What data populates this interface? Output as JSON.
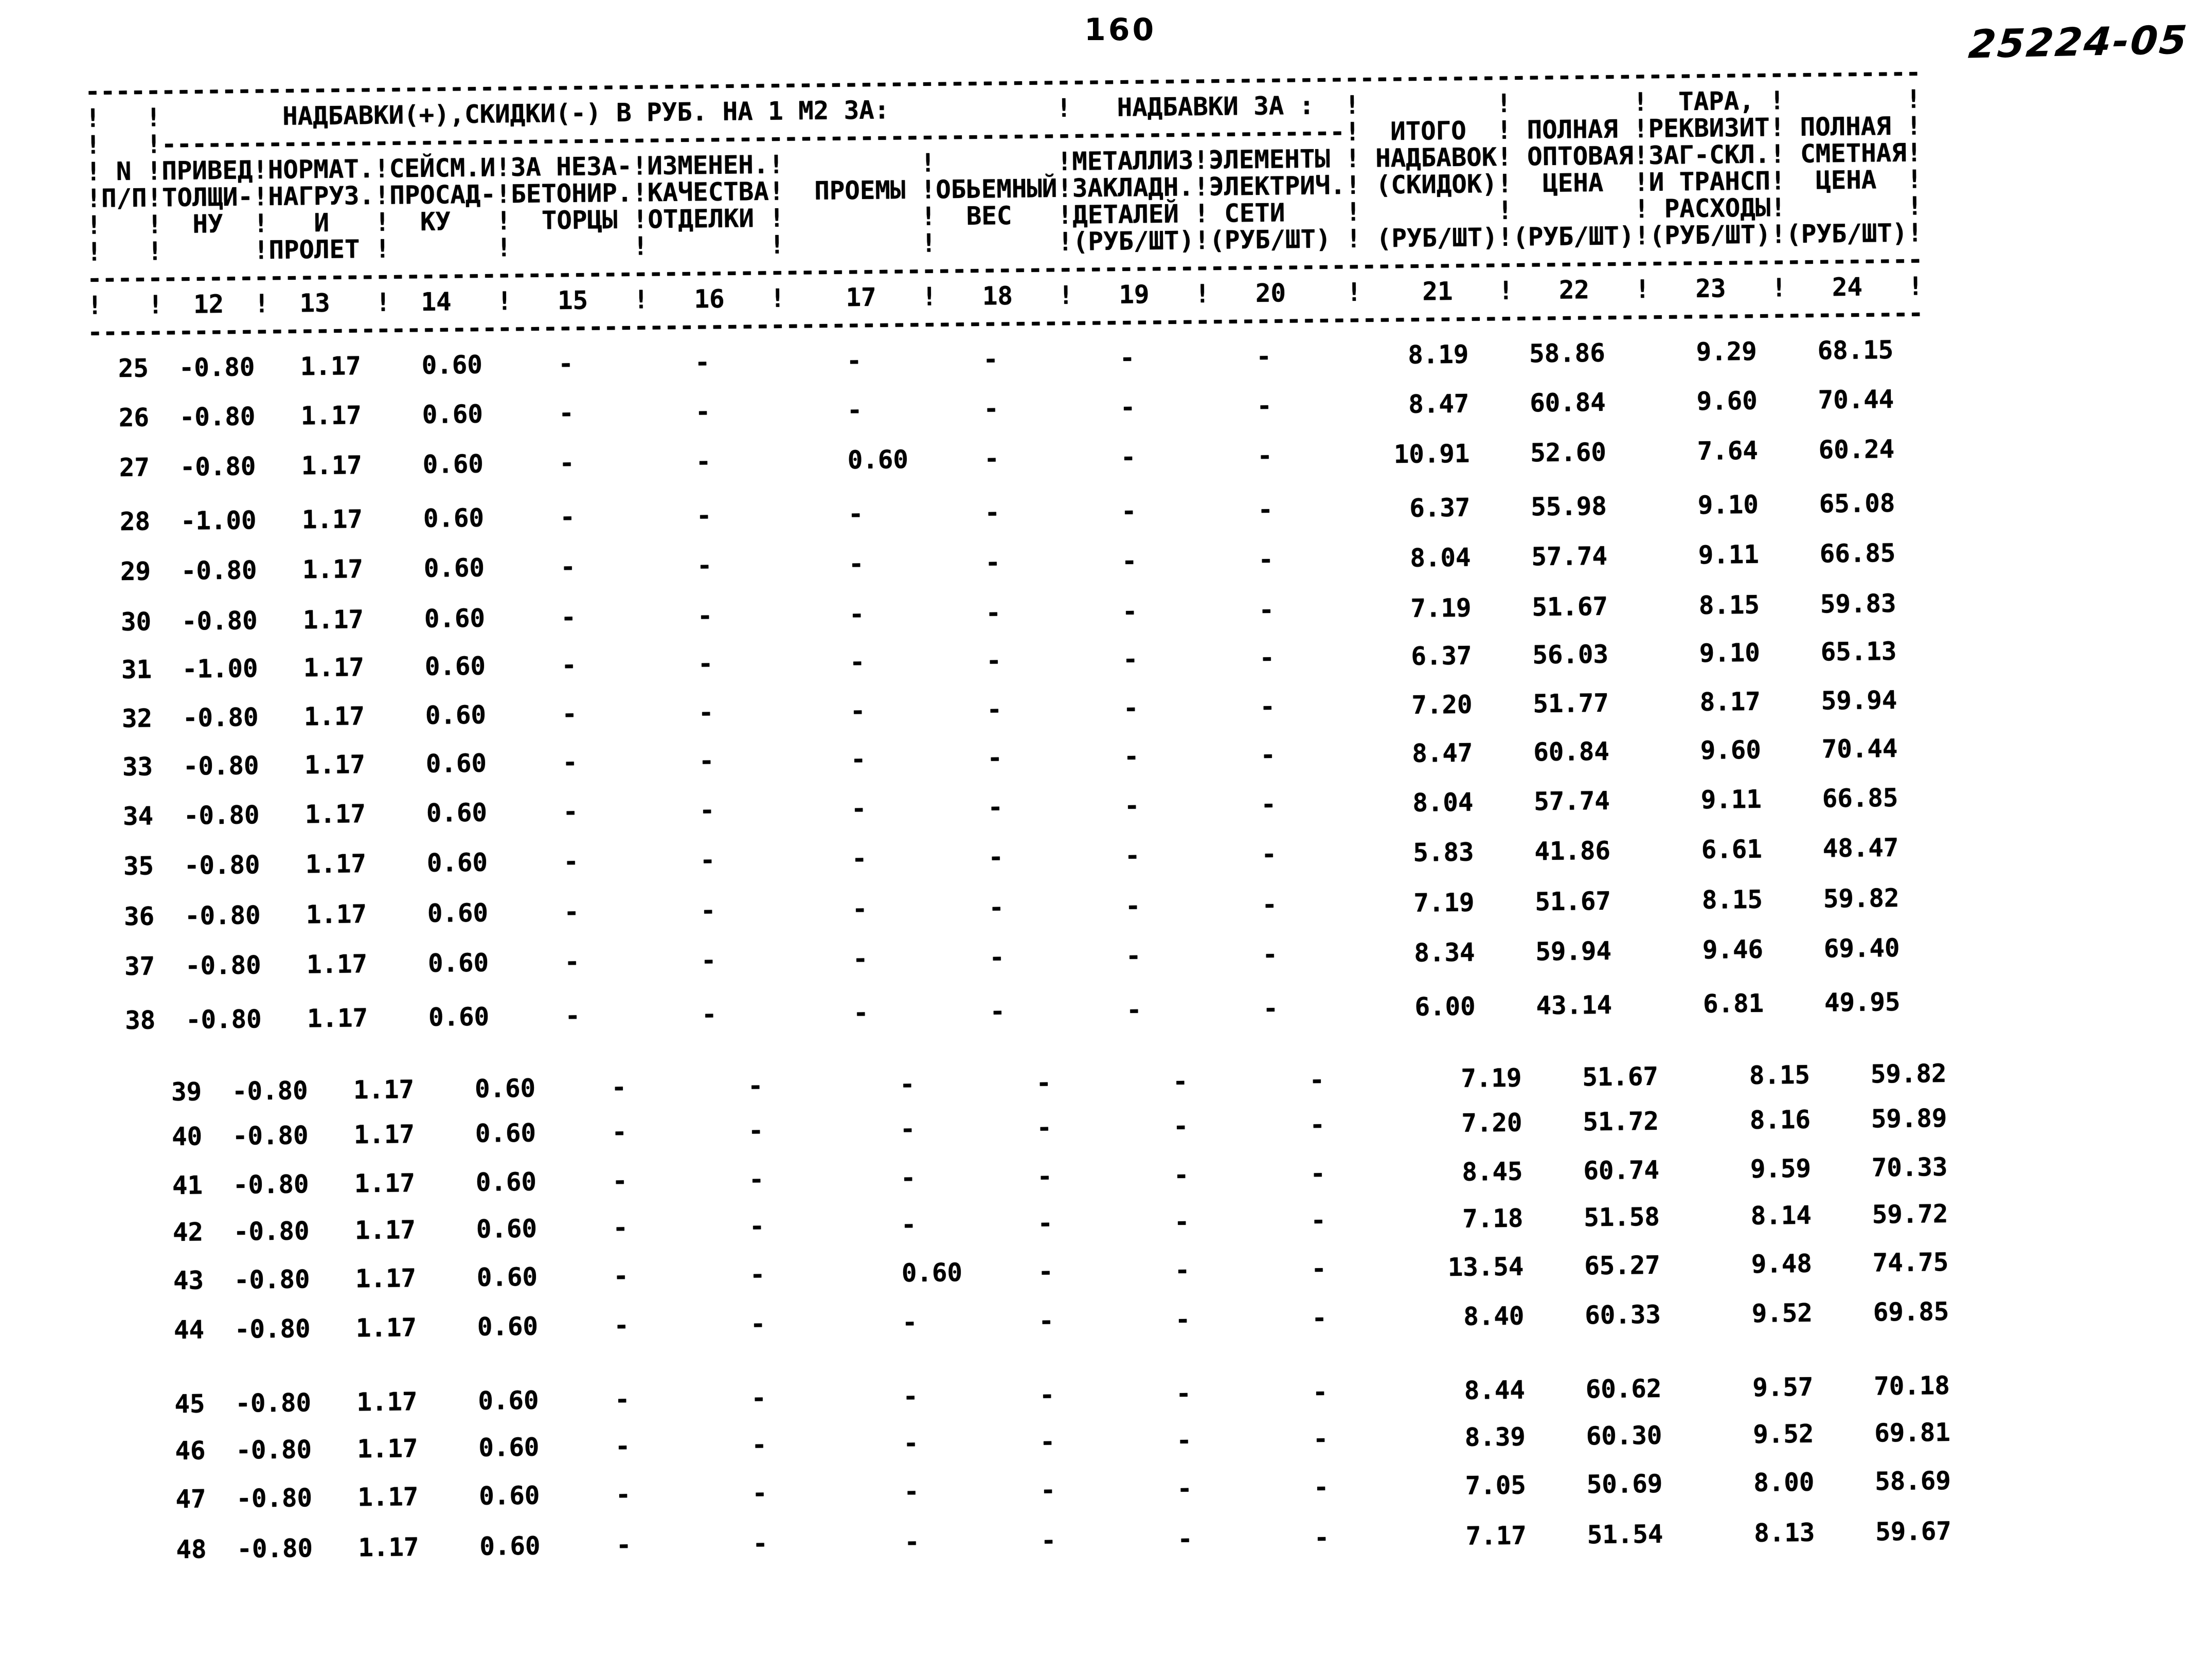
{
  "page": {
    "number": "160",
    "doc_code": "25224-05"
  },
  "table": {
    "group_titles": {
      "main": "НАДБАВКИ(+),СКИДКИ(-) В РУБ. НА 1 М2 ЗА:",
      "extra": "НАДБАВКИ ЗА :",
      "tara": "ТАРА,"
    },
    "column_headers": [
      {
        "num": "",
        "label": "N П/П"
      },
      {
        "num": "12",
        "label": "ПРИВЕД ТОЛЩИ- НУ"
      },
      {
        "num": "13",
        "label": "НОРМАТ. НАГРУЗ. И ПРОЛЕТ"
      },
      {
        "num": "14",
        "label": "СЕЙСМ.И ПРОСАД- КУ"
      },
      {
        "num": "15",
        "label": "ЗА НЕЗА- БЕТОНИР. ТОРЦЫ"
      },
      {
        "num": "16",
        "label": "ИЗМЕНЕН. КАЧЕСТВА ОТДЕЛКИ"
      },
      {
        "num": "17",
        "label": "ПРОЕМЫ"
      },
      {
        "num": "18",
        "label": "ОБЬЕМНЫЙ ВЕС"
      },
      {
        "num": "19",
        "label": "МЕТАЛЛИЗ ЗАКЛАДН. ДЕТАЛЕЙ (РУБ/ШТ)"
      },
      {
        "num": "20",
        "label": "ЭЛЕМЕНТЫ ЭЛЕКТРИЧ. СЕТИ (РУБ/ШТ)"
      },
      {
        "num": "21",
        "label": "ИТОГО НАДБАВОК (СКИДОК) (РУБ/ШТ)"
      },
      {
        "num": "22",
        "label": "ПОЛНАЯ ОПТОВАЯ ЦЕНА (РУБ/ШТ)"
      },
      {
        "num": "23",
        "label": "ТАРА, РЕКВИЗИТ ЗАГ-СКЛ. И ТРАНСП РАСХОДЫ (РУБ/ШТ)"
      },
      {
        "num": "24",
        "label": "ПОЛНАЯ СМЕТНАЯ ЦЕНА (РУБ/ШТ)"
      }
    ],
    "header_lines": [
      "!   !        НАДБАВКИ(+),СКИДКИ(-) В РУБ. НА 1 М2 ЗА:           !   НАДБАВКИ ЗА :  !         !        !  ТАРА, !        !",
      "!   !------------------------------------------------------------------------------!  ИТОГО  ! ПОЛНАЯ !РЕКВИЗИТ! ПОЛНАЯ !",
      "! N !ПРИВЕД!НОРМАТ.!СЕЙСМ.И!ЗА НЕЗА-!ИЗМЕНЕН.!         !        !МЕТАЛЛИЗ!ЭЛЕМЕНТЫ ! НАДБАВОК! ОПТОВАЯ!ЗАГ-СКЛ.! СМЕТНАЯ!",
      "!П/П!ТОЛЩИ-!НАГРУЗ.!ПРОСАД-!БЕТОНИР.!КАЧЕСТВА!  ПРОЕМЫ !ОБЬЕМНЫЙ!ЗАКЛАДН.!ЭЛЕКТРИЧ.! (СКИДОК)!  ЦЕНА  !И ТРАНСП!  ЦЕНА  !",
      "!   !  НУ  !   И   !  КУ   !  ТОРЦЫ !ОТДЕЛКИ !         !  ВЕС   !ДЕТАЛЕЙ ! СЕТИ    !         !        ! РАСХОДЫ!        !",
      "!   !      !ПРОЛЕТ !       !        !        !         !        !(РУБ/ШТ)!(РУБ/ШТ) ! (РУБ/ШТ)!(РУБ/ШТ)!(РУБ/ШТ)!(РУБ/ШТ)!",
      "!   !  12  !  13   !  14   !   15   !   16   !    17   !   18   !   19   !   20    !    21   !   22   !   23   !   24   !"
    ],
    "rows": [
      {
        "n": "25",
        "c12": "-0.80",
        "c13": "1.17",
        "c14": "0.60",
        "c15": "-",
        "c16": "-",
        "c17": "-",
        "c18": "-",
        "c19": "-",
        "c20": "-",
        "c21": "8.19",
        "c22": "58.86",
        "c23": "9.29",
        "c24": "68.15"
      },
      {
        "n": "26",
        "c12": "-0.80",
        "c13": "1.17",
        "c14": "0.60",
        "c15": "-",
        "c16": "-",
        "c17": "-",
        "c18": "-",
        "c19": "-",
        "c20": "-",
        "c21": "8.47",
        "c22": "60.84",
        "c23": "9.60",
        "c24": "70.44"
      },
      {
        "n": "27",
        "c12": "-0.80",
        "c13": "1.17",
        "c14": "0.60",
        "c15": "-",
        "c16": "-",
        "c17": "0.60",
        "c18": "-",
        "c19": "-",
        "c20": "-",
        "c21": "10.91",
        "c22": "52.60",
        "c23": "7.64",
        "c24": "60.24"
      },
      {
        "n": "28",
        "c12": "-1.00",
        "c13": "1.17",
        "c14": "0.60",
        "c15": "-",
        "c16": "-",
        "c17": "-",
        "c18": "-",
        "c19": "-",
        "c20": "-",
        "c21": "6.37",
        "c22": "55.98",
        "c23": "9.10",
        "c24": "65.08"
      },
      {
        "n": "29",
        "c12": "-0.80",
        "c13": "1.17",
        "c14": "0.60",
        "c15": "-",
        "c16": "-",
        "c17": "-",
        "c18": "-",
        "c19": "-",
        "c20": "-",
        "c21": "8.04",
        "c22": "57.74",
        "c23": "9.11",
        "c24": "66.85"
      },
      {
        "n": "30",
        "c12": "-0.80",
        "c13": "1.17",
        "c14": "0.60",
        "c15": "-",
        "c16": "-",
        "c17": "-",
        "c18": "-",
        "c19": "-",
        "c20": "-",
        "c21": "7.19",
        "c22": "51.67",
        "c23": "8.15",
        "c24": "59.83"
      },
      {
        "n": "31",
        "c12": "-1.00",
        "c13": "1.17",
        "c14": "0.60",
        "c15": "-",
        "c16": "-",
        "c17": "-",
        "c18": "-",
        "c19": "-",
        "c20": "-",
        "c21": "6.37",
        "c22": "56.03",
        "c23": "9.10",
        "c24": "65.13"
      },
      {
        "n": "32",
        "c12": "-0.80",
        "c13": "1.17",
        "c14": "0.60",
        "c15": "-",
        "c16": "-",
        "c17": "-",
        "c18": "-",
        "c19": "-",
        "c20": "-",
        "c21": "7.20",
        "c22": "51.77",
        "c23": "8.17",
        "c24": "59.94"
      },
      {
        "n": "33",
        "c12": "-0.80",
        "c13": "1.17",
        "c14": "0.60",
        "c15": "-",
        "c16": "-",
        "c17": "-",
        "c18": "-",
        "c19": "-",
        "c20": "-",
        "c21": "8.47",
        "c22": "60.84",
        "c23": "9.60",
        "c24": "70.44"
      },
      {
        "n": "34",
        "c12": "-0.80",
        "c13": "1.17",
        "c14": "0.60",
        "c15": "-",
        "c16": "-",
        "c17": "-",
        "c18": "-",
        "c19": "-",
        "c20": "-",
        "c21": "8.04",
        "c22": "57.74",
        "c23": "9.11",
        "c24": "66.85"
      },
      {
        "n": "35",
        "c12": "-0.80",
        "c13": "1.17",
        "c14": "0.60",
        "c15": "-",
        "c16": "-",
        "c17": "-",
        "c18": "-",
        "c19": "-",
        "c20": "-",
        "c21": "5.83",
        "c22": "41.86",
        "c23": "6.61",
        "c24": "48.47"
      },
      {
        "n": "36",
        "c12": "-0.80",
        "c13": "1.17",
        "c14": "0.60",
        "c15": "-",
        "c16": "-",
        "c17": "-",
        "c18": "-",
        "c19": "-",
        "c20": "-",
        "c21": "7.19",
        "c22": "51.67",
        "c23": "8.15",
        "c24": "59.82"
      },
      {
        "n": "37",
        "c12": "-0.80",
        "c13": "1.17",
        "c14": "0.60",
        "c15": "-",
        "c16": "-",
        "c17": "-",
        "c18": "-",
        "c19": "-",
        "c20": "-",
        "c21": "8.34",
        "c22": "59.94",
        "c23": "9.46",
        "c24": "69.40"
      },
      {
        "n": "38",
        "c12": "-0.80",
        "c13": "1.17",
        "c14": "0.60",
        "c15": "-",
        "c16": "-",
        "c17": "-",
        "c18": "-",
        "c19": "-",
        "c20": "-",
        "c21": "6.00",
        "c22": "43.14",
        "c23": "6.81",
        "c24": "49.95"
      },
      {
        "n": "39",
        "c12": "-0.80",
        "c13": "1.17",
        "c14": "0.60",
        "c15": "-",
        "c16": "-",
        "c17": "-",
        "c18": "-",
        "c19": "-",
        "c20": "-",
        "c21": "7.19",
        "c22": "51.67",
        "c23": "8.15",
        "c24": "59.82"
      },
      {
        "n": "40",
        "c12": "-0.80",
        "c13": "1.17",
        "c14": "0.60",
        "c15": "-",
        "c16": "-",
        "c17": "-",
        "c18": "-",
        "c19": "-",
        "c20": "-",
        "c21": "7.20",
        "c22": "51.72",
        "c23": "8.16",
        "c24": "59.89"
      },
      {
        "n": "41",
        "c12": "-0.80",
        "c13": "1.17",
        "c14": "0.60",
        "c15": "-",
        "c16": "-",
        "c17": "-",
        "c18": "-",
        "c19": "-",
        "c20": "-",
        "c21": "8.45",
        "c22": "60.74",
        "c23": "9.59",
        "c24": "70.33"
      },
      {
        "n": "42",
        "c12": "-0.80",
        "c13": "1.17",
        "c14": "0.60",
        "c15": "-",
        "c16": "-",
        "c17": "-",
        "c18": "-",
        "c19": "-",
        "c20": "-",
        "c21": "7.18",
        "c22": "51.58",
        "c23": "8.14",
        "c24": "59.72"
      },
      {
        "n": "43",
        "c12": "-0.80",
        "c13": "1.17",
        "c14": "0.60",
        "c15": "-",
        "c16": "-",
        "c17": "0.60",
        "c18": "-",
        "c19": "-",
        "c20": "-",
        "c21": "13.54",
        "c22": "65.27",
        "c23": "9.48",
        "c24": "74.75"
      },
      {
        "n": "44",
        "c12": "-0.80",
        "c13": "1.17",
        "c14": "0.60",
        "c15": "-",
        "c16": "-",
        "c17": "-",
        "c18": "-",
        "c19": "-",
        "c20": "-",
        "c21": "8.40",
        "c22": "60.33",
        "c23": "9.52",
        "c24": "69.85"
      },
      {
        "n": "45",
        "c12": "-0.80",
        "c13": "1.17",
        "c14": "0.60",
        "c15": "-",
        "c16": "-",
        "c17": "-",
        "c18": "-",
        "c19": "-",
        "c20": "-",
        "c21": "8.44",
        "c22": "60.62",
        "c23": "9.57",
        "c24": "70.18"
      },
      {
        "n": "46",
        "c12": "-0.80",
        "c13": "1.17",
        "c14": "0.60",
        "c15": "-",
        "c16": "-",
        "c17": "-",
        "c18": "-",
        "c19": "-",
        "c20": "-",
        "c21": "8.39",
        "c22": "60.30",
        "c23": "9.52",
        "c24": "69.81"
      },
      {
        "n": "47",
        "c12": "-0.80",
        "c13": "1.17",
        "c14": "0.60",
        "c15": "-",
        "c16": "-",
        "c17": "-",
        "c18": "-",
        "c19": "-",
        "c20": "-",
        "c21": "7.05",
        "c22": "50.69",
        "c23": "8.00",
        "c24": "58.69"
      },
      {
        "n": "48",
        "c12": "-0.80",
        "c13": "1.17",
        "c14": "0.60",
        "c15": "-",
        "c16": "-",
        "c17": "-",
        "c18": "-",
        "c19": "-",
        "c20": "-",
        "c21": "7.17",
        "c22": "51.54",
        "c23": "8.13",
        "c24": "59.67"
      }
    ]
  }
}
